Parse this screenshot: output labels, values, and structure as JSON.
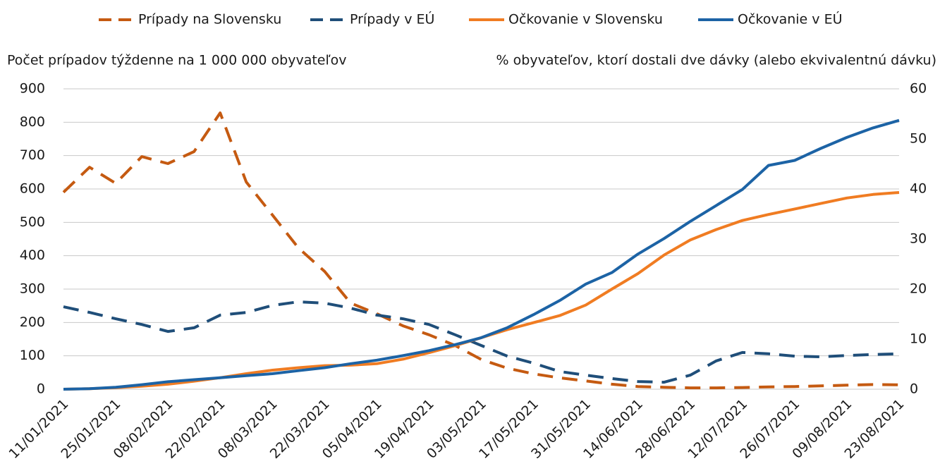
{
  "chart_data": {
    "type": "line",
    "y_label": "Počet prípadov týždenne na 1 000 000 obyvateľov",
    "y2_label": "% obyvateľov, ktorí dostali dve dávky (alebo ekvivalentnú dávku)",
    "categories": [
      "11/01/2021",
      null,
      "25/01/2021",
      null,
      "08/02/2021",
      null,
      "22/02/2021",
      null,
      "08/03/2021",
      null,
      "22/03/2021",
      null,
      "05/04/2021",
      null,
      "19/04/2021",
      null,
      "03/05/2021",
      null,
      "17/05/2021",
      null,
      "31/05/2021",
      null,
      "14/06/2021",
      null,
      "28/06/2021",
      null,
      "12/07/2021",
      null,
      "26/07/2021",
      null,
      "09/08/2021",
      null,
      "23/08/2021"
    ],
    "ylim": [
      0,
      900
    ],
    "yticks": [
      0,
      100,
      200,
      300,
      400,
      500,
      600,
      700,
      800,
      900
    ],
    "y2lim": [
      0,
      60
    ],
    "y2ticks": [
      0,
      10,
      20,
      30,
      40,
      50,
      60
    ],
    "grid": true,
    "legend": "top",
    "series": [
      {
        "name": "Prípady na Slovensku",
        "color": "#c55a11",
        "dashed": true,
        "values": [
          590,
          665,
          617,
          697,
          676,
          712,
          828,
          621,
          522,
          423,
          353,
          258,
          226,
          190,
          163,
          131,
          89,
          63,
          46,
          34,
          25,
          15,
          8,
          6,
          4,
          4,
          5,
          7,
          8,
          10,
          12,
          14,
          13
        ]
      },
      {
        "name": "Prípady v EÚ",
        "color": "#1f4e79",
        "dashed": true,
        "values": [
          247,
          230,
          211,
          194,
          173,
          184,
          222,
          230,
          251,
          262,
          258,
          243,
          222,
          211,
          194,
          163,
          131,
          99,
          78,
          53,
          42,
          32,
          23,
          21,
          42,
          85,
          110,
          106,
          99,
          97,
          101,
          104,
          106
        ]
      },
      {
        "name": "Očkovanie v Slovensku",
        "color": "#f07c22",
        "dashed": false,
        "axis": "y2",
        "values": [
          0,
          0.1,
          0.3,
          0.6,
          1.0,
          1.6,
          2.3,
          3.1,
          3.8,
          4.3,
          4.7,
          4.8,
          5.1,
          6.0,
          7.3,
          8.7,
          10.3,
          11.9,
          13.3,
          14.7,
          16.8,
          20.0,
          23.1,
          26.8,
          29.8,
          31.9,
          33.7,
          34.9,
          36.0,
          37.1,
          38.2,
          38.9,
          39.3
        ]
      },
      {
        "name": "Očkovanie v EÚ",
        "color": "#1c63a5",
        "dashed": false,
        "axis": "y2",
        "values": [
          0,
          0.1,
          0.4,
          0.9,
          1.5,
          1.9,
          2.3,
          2.7,
          3.1,
          3.7,
          4.3,
          5.1,
          5.8,
          6.7,
          7.7,
          8.9,
          10.3,
          12.3,
          14.9,
          17.7,
          21.0,
          23.3,
          27.0,
          30.1,
          33.5,
          36.7,
          39.9,
          44.7,
          45.7,
          48.1,
          50.3,
          52.2,
          53.7
        ]
      }
    ]
  }
}
